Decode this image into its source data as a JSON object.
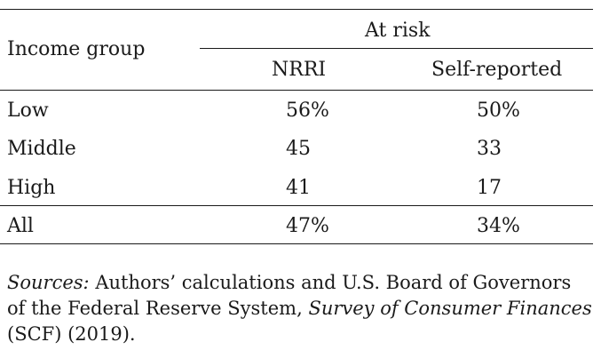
{
  "table": {
    "header": {
      "income_group": "Income group",
      "at_risk": "At risk",
      "nrri": "NRRI",
      "self_reported": "Self-reported"
    },
    "rows": [
      {
        "label": "Low",
        "nrri": "56%",
        "self_reported": "50%"
      },
      {
        "label": "Middle",
        "nrri": "45",
        "self_reported": "33"
      },
      {
        "label": "High",
        "nrri": "41",
        "self_reported": "17"
      },
      {
        "label": "All",
        "nrri": "47%",
        "self_reported": "34%"
      }
    ]
  },
  "source": {
    "lead": "Sources:",
    "text_before_title": " Authors’ calculations and U.S. Board of Governors of the Federal Reserve System, ",
    "title": "Survey of Consumer Finances",
    "text_after_title": " (SCF) (2019)."
  }
}
